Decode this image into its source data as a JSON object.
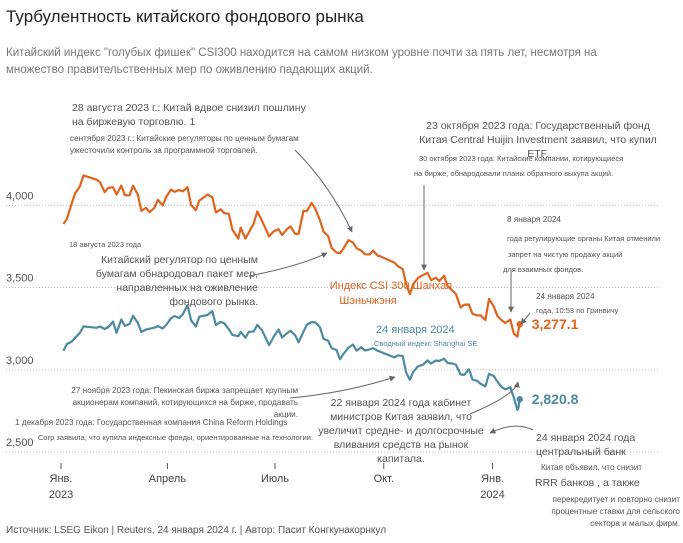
{
  "header": {
    "title": "Турбулентность китайского фондового рынка",
    "subtitle": "Китайский индекс \"голубых фишек\" CSI300 находится на самом низком уровне почти за пять лет, несмотря на множество правительственных мер по оживлению падающих акций."
  },
  "footer": {
    "source": "Источник: LSEG Eikon | Reuters, 24 января 2024 г. | Автор: Пасит Конгкунакорнкул"
  },
  "annotations": {
    "a1": "28 августа 2023 г.: Китай вдвое снизил пошлину на биржевую торговлю. 1",
    "a1b": "сентября 2023 г.: Китайские регуляторы по ценным бумагам ужесточили контроль за программной торговлей.",
    "a2": "23 октября 2023 года: Государственный фонд Китая Central Huijin Investment заявил, что купил ETF.",
    "a2b": "30 октября 2023 года: Китайские компании, котирующиеся",
    "a2c": "на бирже, обнародовали планы обратного выкупа акций.",
    "a3": "8 января 2024",
    "a3b": "года регулирующие органы Китая отменили",
    "a3c": "запрет на чистую продажу акций",
    "a3d": "для взаимных фондов.",
    "a4": "24 января 2024",
    "a4b": "года, 10:53 по Гринвичу",
    "a5": "18 августа 2023 года",
    "a5b": "Китайский регулятор по ценным бумагам обнародовал пакет мер, направленных на оживление фондового рынка.",
    "a6": "27 ноября 2023 года: Пекинская биржа запрещает крупным акционерам компаний, котирующихся на бирже, продавать акции.",
    "a6b": "1 декабря 2023 года: Государственная компания China Reform Holdings",
    "a6c": "Corp заявила, что купила индексные фонды, ориентированные на технологии.",
    "a7": "22 января 2024 года кабинет министров Китая заявил, что увеличит средне- и долгосрочные вливания средств на рынок капитала.",
    "a8": "24 января 2024 года центральный банк",
    "a8b": "Китая объявил, что снизит",
    "a8c": "RRR банков , а также",
    "a8d": "перекредитует и повторно снизит процентные ставки для сельского сектора и малых фирм."
  },
  "chart_data": {
    "type": "line",
    "ylim": [
      2500,
      4300
    ],
    "yticks": [
      2500,
      3000,
      3500,
      4000
    ],
    "ytick_labels": [
      "2,500",
      "3,000",
      "3,500",
      "4,000"
    ],
    "xlim": [
      "2023-01-01",
      "2024-01-31"
    ],
    "xticks": [
      {
        "date": "2023-01-01",
        "label": "Янв.",
        "label2": "2023"
      },
      {
        "date": "2023-04-01",
        "label": "Апрель",
        "label2": ""
      },
      {
        "date": "2023-07-01",
        "label": "Июль",
        "label2": ""
      },
      {
        "date": "2023-10-01",
        "label": "Окт.",
        "label2": ""
      },
      {
        "date": "2024-01-01",
        "label": "Янв.",
        "label2": "2024"
      }
    ],
    "grid": true,
    "series": [
      {
        "name": "Индекс CSI 300 Шанхая и Шэньчжэня",
        "color": "#e0631e",
        "end_label": "3,277.1",
        "points": [
          [
            "2023-01-03",
            3887
          ],
          [
            "2023-01-06",
            3916
          ],
          [
            "2023-01-10",
            4010
          ],
          [
            "2023-01-13",
            4074
          ],
          [
            "2023-01-17",
            4115
          ],
          [
            "2023-01-20",
            4182
          ],
          [
            "2023-01-31",
            4156
          ],
          [
            "2023-02-03",
            4141
          ],
          [
            "2023-02-07",
            4080
          ],
          [
            "2023-02-10",
            4106
          ],
          [
            "2023-02-14",
            4110
          ],
          [
            "2023-02-17",
            4066
          ],
          [
            "2023-02-21",
            4120
          ],
          [
            "2023-02-24",
            4062
          ],
          [
            "2023-02-28",
            4061
          ],
          [
            "2023-03-03",
            4120
          ],
          [
            "2023-03-07",
            4065
          ],
          [
            "2023-03-10",
            3967
          ],
          [
            "2023-03-14",
            3985
          ],
          [
            "2023-03-17",
            3958
          ],
          [
            "2023-03-21",
            3986
          ],
          [
            "2023-03-24",
            4033
          ],
          [
            "2023-03-28",
            3999
          ],
          [
            "2023-03-31",
            4051
          ],
          [
            "2023-04-04",
            4096
          ],
          [
            "2023-04-07",
            4082
          ],
          [
            "2023-04-11",
            4093
          ],
          [
            "2023-04-14",
            4085
          ],
          [
            "2023-04-18",
            4110
          ],
          [
            "2023-04-21",
            4002
          ],
          [
            "2023-04-25",
            3971
          ],
          [
            "2023-04-28",
            4029
          ],
          [
            "2023-05-05",
            4066
          ],
          [
            "2023-05-09",
            4049
          ],
          [
            "2023-05-12",
            3957
          ],
          [
            "2023-05-16",
            3976
          ],
          [
            "2023-05-19",
            3953
          ],
          [
            "2023-05-23",
            3948
          ],
          [
            "2023-05-26",
            3851
          ],
          [
            "2023-05-31",
            3798
          ],
          [
            "2023-06-02",
            3864
          ],
          [
            "2023-06-06",
            3798
          ],
          [
            "2023-06-09",
            3837
          ],
          [
            "2023-06-13",
            3889
          ],
          [
            "2023-06-16",
            3963
          ],
          [
            "2023-06-20",
            3906
          ],
          [
            "2023-06-26",
            3811
          ],
          [
            "2023-06-30",
            3842
          ],
          [
            "2023-07-04",
            3855
          ],
          [
            "2023-07-07",
            3819
          ],
          [
            "2023-07-11",
            3854
          ],
          [
            "2023-07-14",
            3872
          ],
          [
            "2023-07-18",
            3827
          ],
          [
            "2023-07-21",
            3825
          ],
          [
            "2023-07-25",
            3966
          ],
          [
            "2023-07-28",
            3965
          ],
          [
            "2023-08-01",
            4015
          ],
          [
            "2023-08-04",
            3980
          ],
          [
            "2023-08-08",
            3910
          ],
          [
            "2023-08-11",
            3840
          ],
          [
            "2023-08-15",
            3812
          ],
          [
            "2023-08-18",
            3740
          ],
          [
            "2023-08-22",
            3713
          ],
          [
            "2023-08-25",
            3709
          ],
          [
            "2023-08-28",
            3738
          ],
          [
            "2023-09-01",
            3788
          ],
          [
            "2023-09-05",
            3774
          ],
          [
            "2023-09-08",
            3739
          ],
          [
            "2023-09-12",
            3725
          ],
          [
            "2023-09-15",
            3703
          ],
          [
            "2023-09-19",
            3701
          ],
          [
            "2023-09-22",
            3725
          ],
          [
            "2023-09-26",
            3693
          ],
          [
            "2023-09-28",
            3690
          ],
          [
            "2023-10-10",
            3652
          ],
          [
            "2023-10-13",
            3630
          ],
          [
            "2023-10-17",
            3612
          ],
          [
            "2023-10-20",
            3521
          ],
          [
            "2023-10-23",
            3460
          ],
          [
            "2023-10-26",
            3522
          ],
          [
            "2023-10-30",
            3558
          ],
          [
            "2023-11-03",
            3575
          ],
          [
            "2023-11-07",
            3590
          ],
          [
            "2023-11-10",
            3545
          ],
          [
            "2023-11-14",
            3560
          ],
          [
            "2023-11-17",
            3540
          ],
          [
            "2023-11-21",
            3572
          ],
          [
            "2023-11-24",
            3508
          ],
          [
            "2023-11-28",
            3482
          ],
          [
            "2023-12-01",
            3461
          ],
          [
            "2023-12-05",
            3379
          ],
          [
            "2023-12-08",
            3396
          ],
          [
            "2023-12-12",
            3397
          ],
          [
            "2023-12-15",
            3341
          ],
          [
            "2023-12-19",
            3330
          ],
          [
            "2023-12-22",
            3331
          ],
          [
            "2023-12-26",
            3302
          ],
          [
            "2023-12-29",
            3431
          ],
          [
            "2024-01-02",
            3386
          ],
          [
            "2024-01-05",
            3329
          ],
          [
            "2024-01-09",
            3299
          ],
          [
            "2024-01-12",
            3285
          ],
          [
            "2024-01-16",
            3306
          ],
          [
            "2024-01-19",
            3220
          ],
          [
            "2024-01-22",
            3202
          ],
          [
            "2024-01-23",
            3242
          ],
          [
            "2024-01-24",
            3277
          ]
        ]
      },
      {
        "name": "Сводный индекс Shanghai SE",
        "color": "#4b8aa0",
        "end_label": "2,820.8",
        "points": [
          [
            "2023-01-03",
            3116
          ],
          [
            "2023-01-06",
            3157
          ],
          [
            "2023-01-10",
            3170
          ],
          [
            "2023-01-13",
            3195
          ],
          [
            "2023-01-17",
            3224
          ],
          [
            "2023-01-20",
            3264
          ],
          [
            "2023-01-31",
            3255
          ],
          [
            "2023-02-03",
            3263
          ],
          [
            "2023-02-07",
            3248
          ],
          [
            "2023-02-10",
            3260
          ],
          [
            "2023-02-14",
            3293
          ],
          [
            "2023-02-17",
            3224
          ],
          [
            "2023-02-21",
            3306
          ],
          [
            "2023-02-24",
            3267
          ],
          [
            "2023-02-28",
            3279
          ],
          [
            "2023-03-03",
            3328
          ],
          [
            "2023-03-07",
            3285
          ],
          [
            "2023-03-10",
            3230
          ],
          [
            "2023-03-14",
            3245
          ],
          [
            "2023-03-17",
            3250
          ],
          [
            "2023-03-21",
            3256
          ],
          [
            "2023-03-24",
            3266
          ],
          [
            "2023-03-28",
            3251
          ],
          [
            "2023-03-31",
            3273
          ],
          [
            "2023-04-04",
            3313
          ],
          [
            "2023-04-07",
            3327
          ],
          [
            "2023-04-11",
            3315
          ],
          [
            "2023-04-14",
            3338
          ],
          [
            "2023-04-18",
            3393
          ],
          [
            "2023-04-21",
            3301
          ],
          [
            "2023-04-25",
            3264
          ],
          [
            "2023-04-28",
            3323
          ],
          [
            "2023-05-05",
            3334
          ],
          [
            "2023-05-09",
            3357
          ],
          [
            "2023-05-12",
            3272
          ],
          [
            "2023-05-16",
            3291
          ],
          [
            "2023-05-19",
            3283
          ],
          [
            "2023-05-23",
            3246
          ],
          [
            "2023-05-26",
            3212
          ],
          [
            "2023-05-31",
            3204
          ],
          [
            "2023-06-02",
            3230
          ],
          [
            "2023-06-06",
            3195
          ],
          [
            "2023-06-09",
            3231
          ],
          [
            "2023-06-13",
            3233
          ],
          [
            "2023-06-16",
            3273
          ],
          [
            "2023-06-20",
            3240
          ],
          [
            "2023-06-26",
            3150
          ],
          [
            "2023-06-30",
            3202
          ],
          [
            "2023-07-04",
            3245
          ],
          [
            "2023-07-07",
            3196
          ],
          [
            "2023-07-11",
            3221
          ],
          [
            "2023-07-14",
            3237
          ],
          [
            "2023-07-18",
            3210
          ],
          [
            "2023-07-21",
            3167
          ],
          [
            "2023-07-25",
            3231
          ],
          [
            "2023-07-28",
            3275
          ],
          [
            "2023-08-01",
            3290
          ],
          [
            "2023-08-04",
            3288
          ],
          [
            "2023-08-08",
            3260
          ],
          [
            "2023-08-11",
            3189
          ],
          [
            "2023-08-15",
            3176
          ],
          [
            "2023-08-18",
            3131
          ],
          [
            "2023-08-22",
            3120
          ],
          [
            "2023-08-25",
            3064
          ],
          [
            "2023-08-28",
            3098
          ],
          [
            "2023-09-01",
            3133
          ],
          [
            "2023-09-05",
            3154
          ],
          [
            "2023-09-08",
            3116
          ],
          [
            "2023-09-12",
            3137
          ],
          [
            "2023-09-15",
            3117
          ],
          [
            "2023-09-19",
            3124
          ],
          [
            "2023-09-22",
            3132
          ],
          [
            "2023-09-26",
            3115
          ],
          [
            "2023-09-28",
            3110
          ],
          [
            "2023-10-10",
            3075
          ],
          [
            "2023-10-13",
            3088
          ],
          [
            "2023-10-17",
            3083
          ],
          [
            "2023-10-20",
            2983
          ],
          [
            "2023-10-23",
            2939
          ],
          [
            "2023-10-26",
            2988
          ],
          [
            "2023-10-30",
            3021
          ],
          [
            "2023-11-03",
            3030
          ],
          [
            "2023-11-07",
            3057
          ],
          [
            "2023-11-10",
            3038
          ],
          [
            "2023-11-14",
            3056
          ],
          [
            "2023-11-17",
            3054
          ],
          [
            "2023-11-21",
            3067
          ],
          [
            "2023-11-24",
            3041
          ],
          [
            "2023-11-28",
            3038
          ],
          [
            "2023-12-01",
            3031
          ],
          [
            "2023-12-05",
            2972
          ],
          [
            "2023-12-08",
            2969
          ],
          [
            "2023-12-12",
            3003
          ],
          [
            "2023-12-15",
            2942
          ],
          [
            "2023-12-19",
            2932
          ],
          [
            "2023-12-22",
            2914
          ],
          [
            "2023-12-26",
            2899
          ],
          [
            "2023-12-29",
            2975
          ],
          [
            "2024-01-02",
            2962
          ],
          [
            "2024-01-05",
            2929
          ],
          [
            "2024-01-09",
            2893
          ],
          [
            "2024-01-12",
            2881
          ],
          [
            "2024-01-16",
            2893
          ],
          [
            "2024-01-19",
            2832
          ],
          [
            "2024-01-22",
            2756
          ],
          [
            "2024-01-23",
            2770
          ],
          [
            "2024-01-24",
            2821
          ]
        ]
      }
    ]
  }
}
